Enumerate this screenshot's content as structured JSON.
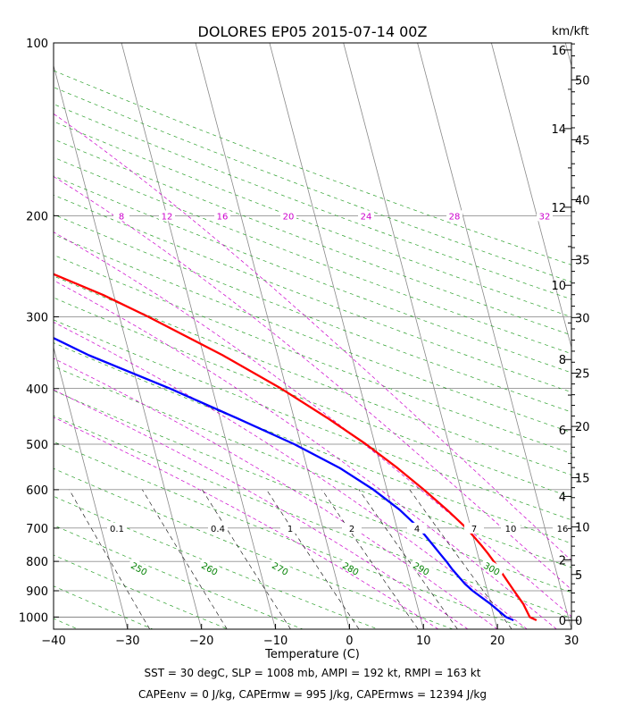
{
  "chart_data": {
    "type": "skew-t",
    "title": "DOLORES EP05 2015-07-14 00Z",
    "xlabel": "Temperature (C)",
    "height_units_label": "km/kft",
    "xlim": [
      -40,
      30
    ],
    "plim": [
      100,
      1050
    ],
    "x_ticks": [
      -40,
      -30,
      -20,
      -10,
      0,
      10,
      20,
      30
    ],
    "pressure_ticks": [
      100,
      200,
      300,
      400,
      500,
      600,
      700,
      800,
      900,
      1000
    ],
    "km_ticks": [
      "0",
      "2",
      "4",
      "6",
      "8",
      "10",
      "12",
      "14",
      "16"
    ],
    "kft_ticks": [
      "0",
      "5",
      "10",
      "15",
      "20",
      "25",
      "30",
      "35",
      "40",
      "45",
      "50"
    ],
    "mixing_ratio_labels_200hPa": [
      "8",
      "12",
      "16",
      "20",
      "24",
      "28",
      "32"
    ],
    "mixing_ratio_labels_700hPa": [
      "0.1",
      "0.4",
      "1",
      "2",
      "4",
      "7",
      "10",
      "16"
    ],
    "theta_labels_800hPa": [
      "250",
      "260",
      "270",
      "280",
      "290",
      "300"
    ],
    "series": [
      {
        "name": "Temperature",
        "color": "#ff0000",
        "pressure_hPa": [
          1013,
          1000,
          975,
          950,
          925,
          900,
          875,
          850,
          825,
          800,
          775,
          750,
          700,
          650,
          600,
          550,
          500,
          450,
          400,
          350,
          300,
          275,
          250,
          225,
          200,
          175,
          150,
          125,
          100
        ],
        "temperature_C": [
          25.6,
          24.8,
          24.6,
          24.4,
          24.0,
          23.6,
          23.2,
          22.8,
          22.4,
          21.9,
          21.4,
          20.8,
          19.4,
          17.4,
          15.0,
          12.2,
          8.8,
          4.5,
          -0.7,
          -7.4,
          -16.1,
          -21.4,
          -28.2,
          -35.6,
          -43.2,
          -50.0,
          -60.4,
          -70.3,
          -79.8
        ]
      },
      {
        "name": "Dewpoint",
        "color": "#0000ff",
        "pressure_hPa": [
          1013,
          1000,
          975,
          950,
          925,
          900,
          875,
          850,
          825,
          800,
          775,
          750,
          700,
          650,
          600,
          550,
          500,
          450,
          400,
          350,
          300,
          275,
          250,
          225,
          200,
          175,
          150,
          125,
          100
        ],
        "temperature_C": [
          22.5,
          21.6,
          20.8,
          20.0,
          19.0,
          18.0,
          17.2,
          16.6,
          16.0,
          15.5,
          14.9,
          14.3,
          13.0,
          11.0,
          8.2,
          4.4,
          -0.9,
          -7.8,
          -15.7,
          -25.5,
          -34.8,
          -40.2,
          -45.8,
          -52.0,
          -57.4,
          -66.7,
          -77.7,
          -86.5,
          -93.0
        ]
      }
    ],
    "footer_line1": "SST = 30 degC, SLP = 1008 mb, AMPI = 192 kt, RMPI = 163 kt",
    "footer_line2": "CAPEenv = 0 J/kg, CAPErmw = 995 J/kg, CAPErmws = 12394 J/kg"
  }
}
